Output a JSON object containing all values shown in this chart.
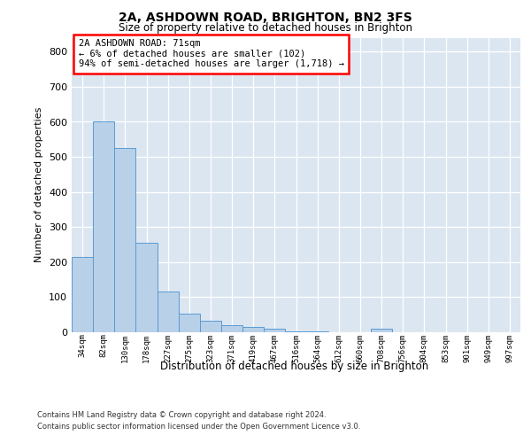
{
  "title_line1": "2A, ASHDOWN ROAD, BRIGHTON, BN2 3FS",
  "title_line2": "Size of property relative to detached houses in Brighton",
  "xlabel": "Distribution of detached houses by size in Brighton",
  "ylabel": "Number of detached properties",
  "bar_labels": [
    "34sqm",
    "82sqm",
    "130sqm",
    "178sqm",
    "227sqm",
    "275sqm",
    "323sqm",
    "371sqm",
    "419sqm",
    "467sqm",
    "516sqm",
    "564sqm",
    "612sqm",
    "660sqm",
    "708sqm",
    "756sqm",
    "804sqm",
    "853sqm",
    "901sqm",
    "949sqm",
    "997sqm"
  ],
  "bar_values": [
    215,
    600,
    525,
    255,
    117,
    53,
    32,
    20,
    16,
    11,
    3,
    2,
    0,
    0,
    9,
    0,
    0,
    0,
    0,
    0,
    0
  ],
  "bar_color": "#b8d0e8",
  "bar_edge_color": "#5b9bd5",
  "plot_bg_color": "#dce6f1",
  "annotation_text": "2A ASHDOWN ROAD: 71sqm\n← 6% of detached houses are smaller (102)\n94% of semi-detached houses are larger (1,718) →",
  "footer_line1": "Contains HM Land Registry data © Crown copyright and database right 2024.",
  "footer_line2": "Contains public sector information licensed under the Open Government Licence v3.0.",
  "ylim_max": 840,
  "yticks": [
    0,
    100,
    200,
    300,
    400,
    500,
    600,
    700,
    800
  ]
}
